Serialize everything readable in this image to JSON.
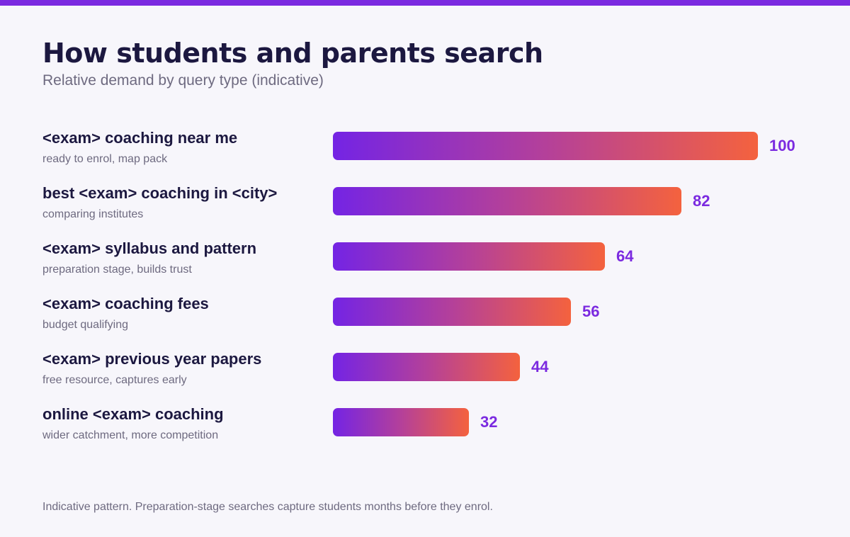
{
  "accent_color": "#7b2ae0",
  "gradient_colors": [
    "#7424e4",
    "#b4409a",
    "#f4623e"
  ],
  "chart_data": {
    "type": "bar",
    "orientation": "horizontal",
    "title": "How students and parents search",
    "subtitle": "Relative demand by query type (indicative)",
    "categories": [
      "<exam> coaching near me",
      "best <exam> coaching in <city>",
      "<exam> syllabus and pattern",
      "<exam> coaching fees",
      "<exam> previous year papers",
      "online <exam> coaching"
    ],
    "notes": [
      "ready to enrol, map pack",
      "comparing institutes",
      "preparation stage, builds trust",
      "budget qualifying",
      "free resource, captures early",
      "wider catchment, more competition"
    ],
    "values": [
      100,
      82,
      64,
      56,
      44,
      32
    ],
    "xlim": [
      0,
      100
    ],
    "grid": false,
    "legend": "none",
    "footnote": "Indicative pattern. Preparation-stage searches capture students months before they enrol."
  }
}
